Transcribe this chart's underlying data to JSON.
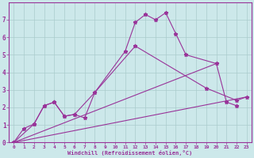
{
  "xlabel": "Windchill (Refroidissement éolien,°C)",
  "background_color": "#cce8ea",
  "grid_color": "#aacccc",
  "line_color": "#993399",
  "xlim": [
    -0.5,
    23.5
  ],
  "ylim": [
    0,
    8
  ],
  "xticks": [
    0,
    1,
    2,
    3,
    4,
    5,
    6,
    7,
    8,
    9,
    10,
    11,
    12,
    13,
    14,
    15,
    16,
    17,
    18,
    19,
    20,
    21,
    22,
    23
  ],
  "yticks": [
    0,
    1,
    2,
    3,
    4,
    5,
    6,
    7
  ],
  "curve1_x": [
    0,
    1,
    2,
    3,
    4,
    5,
    6,
    7,
    8,
    11,
    12,
    13,
    14,
    15,
    16,
    17,
    20,
    21,
    22
  ],
  "curve1_y": [
    0.0,
    0.8,
    1.05,
    2.1,
    2.3,
    1.5,
    1.6,
    1.4,
    2.85,
    5.2,
    6.85,
    7.3,
    7.0,
    7.4,
    6.2,
    5.0,
    4.5,
    2.3,
    2.1
  ],
  "curve2_x": [
    0,
    2,
    3,
    4,
    5,
    6,
    8,
    12,
    19,
    22,
    23
  ],
  "curve2_y": [
    0.0,
    1.05,
    2.1,
    2.3,
    1.5,
    1.6,
    2.85,
    5.5,
    3.1,
    2.4,
    2.6
  ],
  "line3_x": [
    0,
    23
  ],
  "line3_y": [
    0.0,
    2.6
  ],
  "line4_x": [
    0,
    20
  ],
  "line4_y": [
    0.0,
    4.5
  ]
}
